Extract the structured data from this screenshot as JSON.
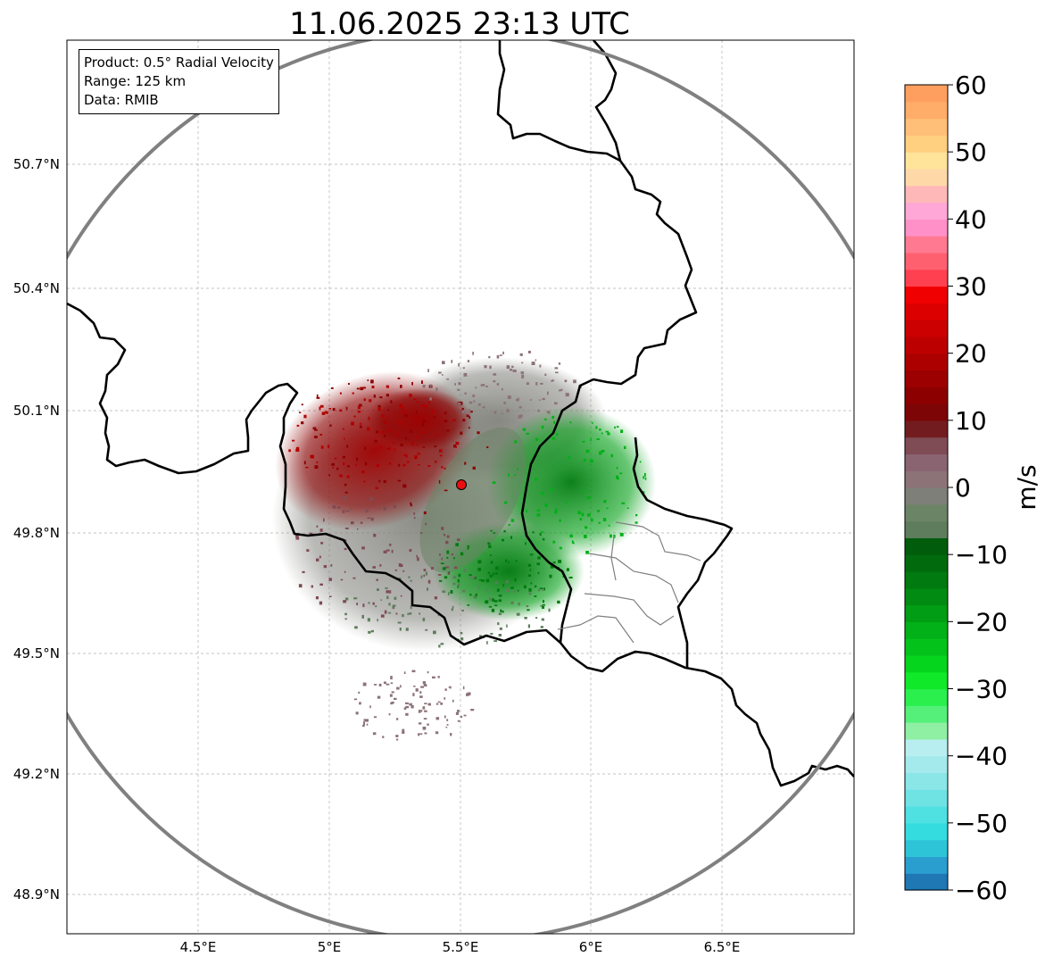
{
  "title": "11.06.2025 23:13 UTC",
  "info": {
    "product": "Product: 0.5° Radial Velocity",
    "range": "Range: 125 km",
    "data_source": "Data: RMIB"
  },
  "axes": {
    "lon_ticks": [
      "4.5°E",
      "5°E",
      "5.5°E",
      "6°E",
      "6.5°E"
    ],
    "lat_ticks": [
      "50.7°N",
      "50.4°N",
      "50.1°N",
      "49.8°N",
      "49.5°N",
      "49.2°N",
      "48.9°N"
    ]
  },
  "colorbar": {
    "label": "m/s",
    "ticks": [
      "60",
      "50",
      "40",
      "30",
      "20",
      "10",
      "0",
      "−10",
      "−20",
      "−30",
      "−40",
      "−50",
      "−60"
    ],
    "min": -60,
    "max": 60,
    "colors": [
      "#1f77b4",
      "#2a9fcf",
      "#2ec4d8",
      "#34dbdf",
      "#4fe0e2",
      "#6fe3e4",
      "#8ae6e7",
      "#a4eaec",
      "#b8eef0",
      "#8ff0a4",
      "#55f07a",
      "#2aef4d",
      "#10e82a",
      "#05d51d",
      "#03c21a",
      "#02b017",
      "#019d14",
      "#018b12",
      "#017a0f",
      "#016a0d",
      "#015c0b",
      "#5e7d5c",
      "#6c8466",
      "#7e7f78",
      "#8b7378",
      "#8a6470",
      "#7f4b54",
      "#731c1f",
      "#7e0505",
      "#8c0000",
      "#9c0000",
      "#ac0000",
      "#bc0000",
      "#cc0000",
      "#dd0000",
      "#f00000",
      "#ff4050",
      "#ff6070",
      "#ff7a90",
      "#ff90c8",
      "#ffa8d8",
      "#ffb8b8",
      "#ffd8a8",
      "#ffe49a",
      "#ffd080",
      "#ffbf78",
      "#ffad68",
      "#ff9f5f"
    ]
  },
  "radar": {
    "site_lon": 5.505,
    "site_lat": 49.914,
    "range_km": 125
  }
}
